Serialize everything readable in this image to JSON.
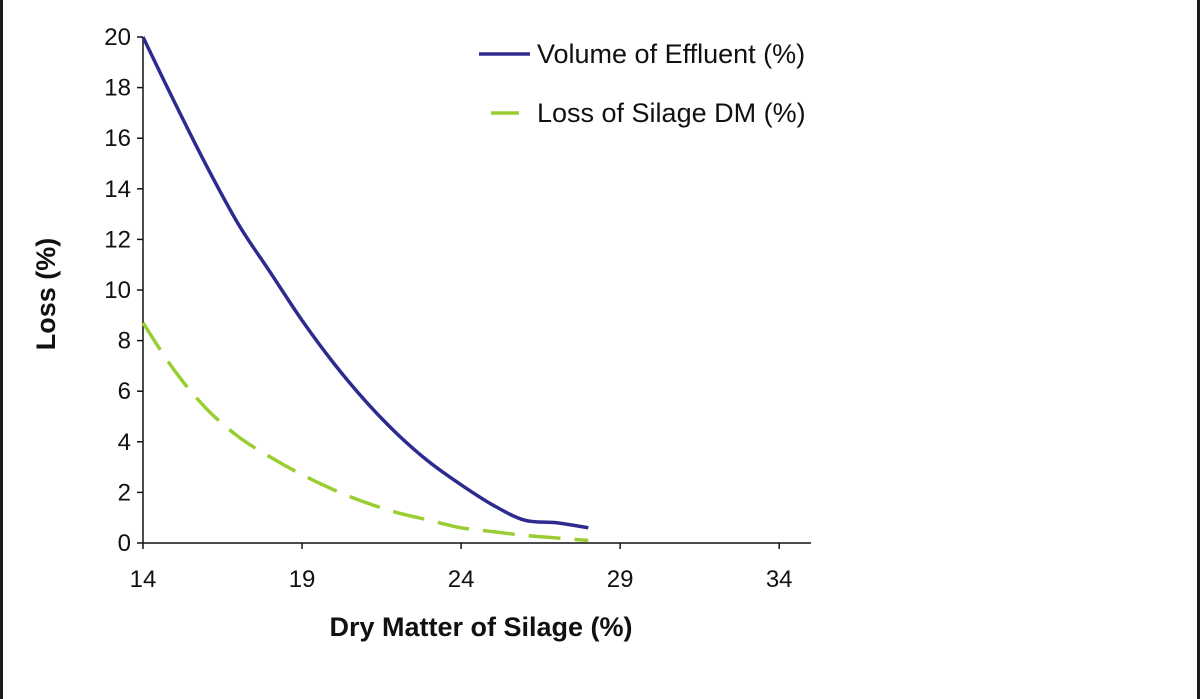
{
  "chart_data": {
    "type": "line",
    "title": "",
    "xlabel": "Dry Matter of Silage (%)",
    "ylabel": "Loss (%)",
    "xlim": [
      14,
      35
    ],
    "ylim": [
      0,
      20
    ],
    "x_ticks": [
      "14",
      "19",
      "24",
      "29",
      "34"
    ],
    "y_ticks": [
      "0",
      "2",
      "4",
      "6",
      "8",
      "10",
      "12",
      "14",
      "16",
      "18",
      "20"
    ],
    "grid": false,
    "legend_position": "top-right",
    "series": [
      {
        "name": "Volume of Effluent (%)",
        "color": "#2e2b8f",
        "style": "solid",
        "x": [
          14,
          15,
          16,
          17,
          18,
          19,
          20,
          21,
          22,
          23,
          24,
          25,
          26,
          27,
          28
        ],
        "y": [
          20,
          17.4,
          14.9,
          12.6,
          10.7,
          8.8,
          7.1,
          5.6,
          4.3,
          3.2,
          2.3,
          1.5,
          0.9,
          0.8,
          0.6
        ]
      },
      {
        "name": "Loss of Silage DM (%)",
        "color": "#9acd32",
        "style": "dashed",
        "x": [
          14,
          15,
          16,
          17,
          18,
          19,
          20,
          21,
          22,
          23,
          24,
          25,
          26,
          27,
          28
        ],
        "y": [
          8.7,
          6.8,
          5.3,
          4.2,
          3.4,
          2.7,
          2.1,
          1.6,
          1.2,
          0.9,
          0.6,
          0.45,
          0.3,
          0.2,
          0.1
        ]
      }
    ]
  }
}
